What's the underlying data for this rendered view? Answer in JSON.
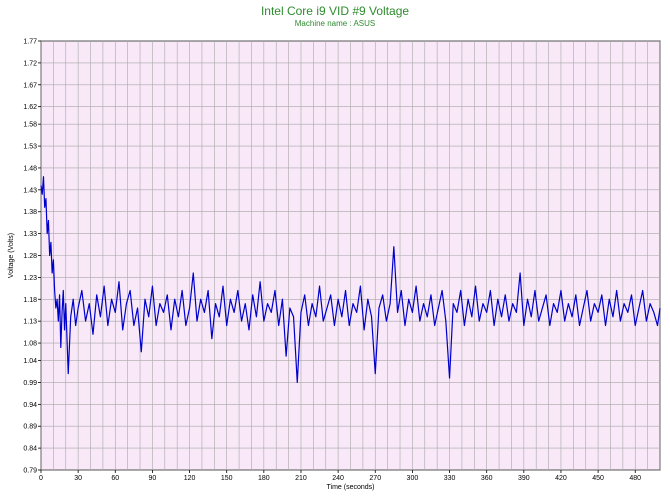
{
  "chart_data": {
    "type": "line",
    "title": "Intel Core i9 VID #9 Voltage",
    "subtitle": "Machine name : ASUS",
    "xlabel": "Time (seconds)",
    "ylabel": "Voltage (Volts)",
    "xlim": [
      0,
      500
    ],
    "ylim": [
      0.79,
      1.77
    ],
    "x_ticks": [
      0,
      30,
      60,
      90,
      120,
      150,
      180,
      210,
      240,
      270,
      300,
      330,
      360,
      390,
      420,
      450,
      480
    ],
    "y_ticks": [
      "0.79",
      "0.84",
      "0.89",
      "0.94",
      "0.99",
      "1.04",
      "1.08",
      "1.13",
      "1.18",
      "1.23",
      "1.28",
      "1.33",
      "1.38",
      "1.43",
      "1.48",
      "1.53",
      "1.58",
      "1.62",
      "1.67",
      "1.72",
      "1.77"
    ],
    "grid": true,
    "legend": "none",
    "series": [
      {
        "points": [
          [
            0,
            1.44
          ],
          [
            1,
            1.42
          ],
          [
            2,
            1.46
          ],
          [
            3,
            1.39
          ],
          [
            4,
            1.41
          ],
          [
            5,
            1.33
          ],
          [
            6,
            1.36
          ],
          [
            7,
            1.28
          ],
          [
            8,
            1.31
          ],
          [
            9,
            1.24
          ],
          [
            10,
            1.27
          ],
          [
            11,
            1.2
          ],
          [
            12,
            1.16
          ],
          [
            13,
            1.18
          ],
          [
            14,
            1.13
          ],
          [
            15,
            1.19
          ],
          [
            16,
            1.07
          ],
          [
            17,
            1.15
          ],
          [
            18,
            1.2
          ],
          [
            19,
            1.11
          ],
          [
            20,
            1.17
          ],
          [
            22,
            1.01
          ],
          [
            24,
            1.14
          ],
          [
            26,
            1.18
          ],
          [
            28,
            1.12
          ],
          [
            30,
            1.16
          ],
          [
            33,
            1.2
          ],
          [
            36,
            1.13
          ],
          [
            39,
            1.17
          ],
          [
            42,
            1.1
          ],
          [
            45,
            1.19
          ],
          [
            48,
            1.14
          ],
          [
            51,
            1.21
          ],
          [
            54,
            1.12
          ],
          [
            57,
            1.18
          ],
          [
            60,
            1.15
          ],
          [
            63,
            1.22
          ],
          [
            66,
            1.11
          ],
          [
            69,
            1.17
          ],
          [
            72,
            1.2
          ],
          [
            75,
            1.12
          ],
          [
            78,
            1.16
          ],
          [
            81,
            1.06
          ],
          [
            84,
            1.18
          ],
          [
            87,
            1.14
          ],
          [
            90,
            1.21
          ],
          [
            93,
            1.12
          ],
          [
            96,
            1.17
          ],
          [
            99,
            1.15
          ],
          [
            102,
            1.19
          ],
          [
            105,
            1.11
          ],
          [
            108,
            1.18
          ],
          [
            111,
            1.14
          ],
          [
            114,
            1.2
          ],
          [
            117,
            1.12
          ],
          [
            120,
            1.16
          ],
          [
            123,
            1.24
          ],
          [
            126,
            1.13
          ],
          [
            129,
            1.18
          ],
          [
            132,
            1.15
          ],
          [
            135,
            1.2
          ],
          [
            138,
            1.09
          ],
          [
            141,
            1.17
          ],
          [
            144,
            1.14
          ],
          [
            147,
            1.21
          ],
          [
            150,
            1.12
          ],
          [
            153,
            1.18
          ],
          [
            156,
            1.15
          ],
          [
            159,
            1.2
          ],
          [
            162,
            1.13
          ],
          [
            165,
            1.17
          ],
          [
            168,
            1.11
          ],
          [
            171,
            1.19
          ],
          [
            174,
            1.14
          ],
          [
            177,
            1.22
          ],
          [
            180,
            1.13
          ],
          [
            183,
            1.17
          ],
          [
            186,
            1.15
          ],
          [
            189,
            1.2
          ],
          [
            192,
            1.12
          ],
          [
            195,
            1.18
          ],
          [
            198,
            1.05
          ],
          [
            201,
            1.16
          ],
          [
            204,
            1.14
          ],
          [
            207,
            0.99
          ],
          [
            210,
            1.15
          ],
          [
            213,
            1.19
          ],
          [
            216,
            1.12
          ],
          [
            219,
            1.17
          ],
          [
            222,
            1.14
          ],
          [
            225,
            1.21
          ],
          [
            228,
            1.13
          ],
          [
            231,
            1.16
          ],
          [
            234,
            1.19
          ],
          [
            237,
            1.12
          ],
          [
            240,
            1.18
          ],
          [
            243,
            1.14
          ],
          [
            246,
            1.2
          ],
          [
            249,
            1.12
          ],
          [
            252,
            1.17
          ],
          [
            255,
            1.15
          ],
          [
            258,
            1.21
          ],
          [
            261,
            1.11
          ],
          [
            264,
            1.18
          ],
          [
            267,
            1.14
          ],
          [
            270,
            1.01
          ],
          [
            273,
            1.16
          ],
          [
            276,
            1.19
          ],
          [
            279,
            1.13
          ],
          [
            282,
            1.17
          ],
          [
            285,
            1.3
          ],
          [
            288,
            1.15
          ],
          [
            291,
            1.2
          ],
          [
            294,
            1.12
          ],
          [
            297,
            1.18
          ],
          [
            300,
            1.15
          ],
          [
            303,
            1.21
          ],
          [
            306,
            1.13
          ],
          [
            309,
            1.17
          ],
          [
            312,
            1.14
          ],
          [
            315,
            1.19
          ],
          [
            318,
            1.12
          ],
          [
            321,
            1.16
          ],
          [
            324,
            1.2
          ],
          [
            327,
            1.13
          ],
          [
            330,
            1.0
          ],
          [
            333,
            1.17
          ],
          [
            336,
            1.15
          ],
          [
            339,
            1.2
          ],
          [
            342,
            1.12
          ],
          [
            345,
            1.18
          ],
          [
            348,
            1.14
          ],
          [
            351,
            1.21
          ],
          [
            354,
            1.13
          ],
          [
            357,
            1.17
          ],
          [
            360,
            1.15
          ],
          [
            363,
            1.2
          ],
          [
            366,
            1.12
          ],
          [
            369,
            1.18
          ],
          [
            372,
            1.14
          ],
          [
            375,
            1.19
          ],
          [
            378,
            1.13
          ],
          [
            381,
            1.17
          ],
          [
            384,
            1.15
          ],
          [
            387,
            1.24
          ],
          [
            390,
            1.12
          ],
          [
            393,
            1.18
          ],
          [
            396,
            1.14
          ],
          [
            399,
            1.2
          ],
          [
            402,
            1.13
          ],
          [
            405,
            1.16
          ],
          [
            408,
            1.19
          ],
          [
            411,
            1.12
          ],
          [
            414,
            1.17
          ],
          [
            417,
            1.15
          ],
          [
            420,
            1.2
          ],
          [
            423,
            1.13
          ],
          [
            426,
            1.17
          ],
          [
            429,
            1.14
          ],
          [
            432,
            1.19
          ],
          [
            435,
            1.12
          ],
          [
            438,
            1.16
          ],
          [
            441,
            1.2
          ],
          [
            444,
            1.13
          ],
          [
            447,
            1.17
          ],
          [
            450,
            1.15
          ],
          [
            453,
            1.19
          ],
          [
            456,
            1.12
          ],
          [
            459,
            1.18
          ],
          [
            462,
            1.14
          ],
          [
            465,
            1.2
          ],
          [
            468,
            1.13
          ],
          [
            471,
            1.17
          ],
          [
            474,
            1.15
          ],
          [
            477,
            1.19
          ],
          [
            480,
            1.12
          ],
          [
            483,
            1.16
          ],
          [
            486,
            1.2
          ],
          [
            489,
            1.13
          ],
          [
            492,
            1.17
          ],
          [
            495,
            1.15
          ],
          [
            498,
            1.12
          ],
          [
            500,
            1.16
          ]
        ]
      }
    ],
    "colors": {
      "plot_background": "#f8e8f8",
      "grid": "#a8a8a8",
      "line": "#0000cc",
      "title": "#2e8b2e"
    }
  }
}
